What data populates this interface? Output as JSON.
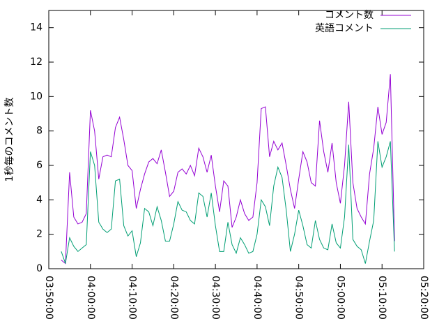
{
  "chart_data": {
    "type": "line",
    "y_label": "1秒毎のコメント数",
    "x": [
      "03:53:00",
      "03:54:00",
      "03:55:00",
      "03:56:00",
      "03:57:00",
      "03:58:00",
      "03:59:00",
      "04:00:00",
      "04:01:00",
      "04:02:00",
      "04:03:00",
      "04:04:00",
      "04:05:00",
      "04:06:00",
      "04:07:00",
      "04:08:00",
      "04:09:00",
      "04:10:00",
      "04:11:00",
      "04:12:00",
      "04:13:00",
      "04:14:00",
      "04:15:00",
      "04:16:00",
      "04:17:00",
      "04:18:00",
      "04:19:00",
      "04:20:00",
      "04:21:00",
      "04:22:00",
      "04:23:00",
      "04:24:00",
      "04:25:00",
      "04:26:00",
      "04:27:00",
      "04:28:00",
      "04:29:00",
      "04:30:00",
      "04:31:00",
      "04:32:00",
      "04:33:00",
      "04:34:00",
      "04:35:00",
      "04:36:00",
      "04:37:00",
      "04:38:00",
      "04:39:00",
      "04:40:00",
      "04:41:00",
      "04:42:00",
      "04:43:00",
      "04:44:00",
      "04:45:00",
      "04:46:00",
      "04:47:00",
      "04:48:00",
      "04:49:00",
      "04:50:00",
      "04:51:00",
      "04:52:00",
      "04:53:00",
      "04:54:00",
      "04:55:00",
      "04:56:00",
      "04:57:00",
      "04:58:00",
      "04:59:00",
      "05:00:00",
      "05:01:00",
      "05:02:00",
      "05:03:00",
      "05:04:00",
      "05:05:00",
      "05:06:00",
      "05:07:00",
      "05:08:00",
      "05:09:00",
      "05:10:00",
      "05:11:00",
      "05:12:00",
      "05:13:00"
    ],
    "series": [
      {
        "name": "コメント数",
        "color": "#9400d3",
        "values": [
          0.5,
          0.3,
          5.6,
          3.0,
          2.6,
          2.7,
          3.2,
          9.2,
          8.0,
          5.2,
          6.5,
          6.6,
          6.5,
          8.2,
          8.8,
          7.5,
          6.0,
          5.7,
          3.5,
          4.6,
          5.5,
          6.2,
          6.4,
          6.1,
          6.9,
          5.6,
          4.2,
          4.5,
          5.6,
          5.8,
          5.5,
          6.0,
          5.4,
          7.0,
          6.5,
          5.6,
          6.6,
          4.8,
          3.3,
          5.1,
          4.8,
          2.4,
          3.0,
          4.0,
          3.2,
          2.8,
          3.0,
          5.0,
          9.3,
          9.4,
          6.5,
          7.4,
          6.9,
          7.3,
          6.0,
          4.6,
          3.5,
          5.2,
          6.8,
          6.2,
          5.0,
          4.8,
          8.6,
          6.8,
          5.6,
          7.3,
          5.0,
          3.8,
          6.0,
          9.7,
          5.0,
          3.5,
          3.0,
          2.6,
          5.5,
          7.0,
          9.4,
          7.8,
          8.5,
          11.3,
          1.6
        ]
      },
      {
        "name": "英語コメント",
        "color": "#009e73",
        "values": [
          1.0,
          0.3,
          1.8,
          1.3,
          1.0,
          1.2,
          1.4,
          6.8,
          6.0,
          2.7,
          2.3,
          2.1,
          2.3,
          5.1,
          5.2,
          2.5,
          1.9,
          2.2,
          0.7,
          1.5,
          3.5,
          3.3,
          2.5,
          3.6,
          2.8,
          1.6,
          1.6,
          2.6,
          3.9,
          3.4,
          3.3,
          2.8,
          2.6,
          4.4,
          4.2,
          3.0,
          4.4,
          2.5,
          1.0,
          1.0,
          2.7,
          1.4,
          0.9,
          1.8,
          1.4,
          0.9,
          1.0,
          2.0,
          4.0,
          3.6,
          2.5,
          4.8,
          5.9,
          5.3,
          3.4,
          1.0,
          2.0,
          3.4,
          2.5,
          1.4,
          1.2,
          2.8,
          1.7,
          1.2,
          1.1,
          2.6,
          1.5,
          1.2,
          3.0,
          7.2,
          1.7,
          1.3,
          1.1,
          0.3,
          1.6,
          2.8,
          7.4,
          5.9,
          6.5,
          7.4,
          1.0
        ]
      }
    ],
    "xlim": [
      "03:50:00",
      "05:20:00"
    ],
    "xticks": [
      "03:50:00",
      "04:00:00",
      "04:10:00",
      "04:20:00",
      "04:30:00",
      "04:40:00",
      "04:50:00",
      "05:00:00",
      "05:10:00",
      "05:20:00"
    ],
    "ylim": [
      0,
      15
    ],
    "yticks": [
      0,
      2,
      4,
      6,
      8,
      10,
      12,
      14
    ],
    "legend": "top-right",
    "grid": false
  }
}
